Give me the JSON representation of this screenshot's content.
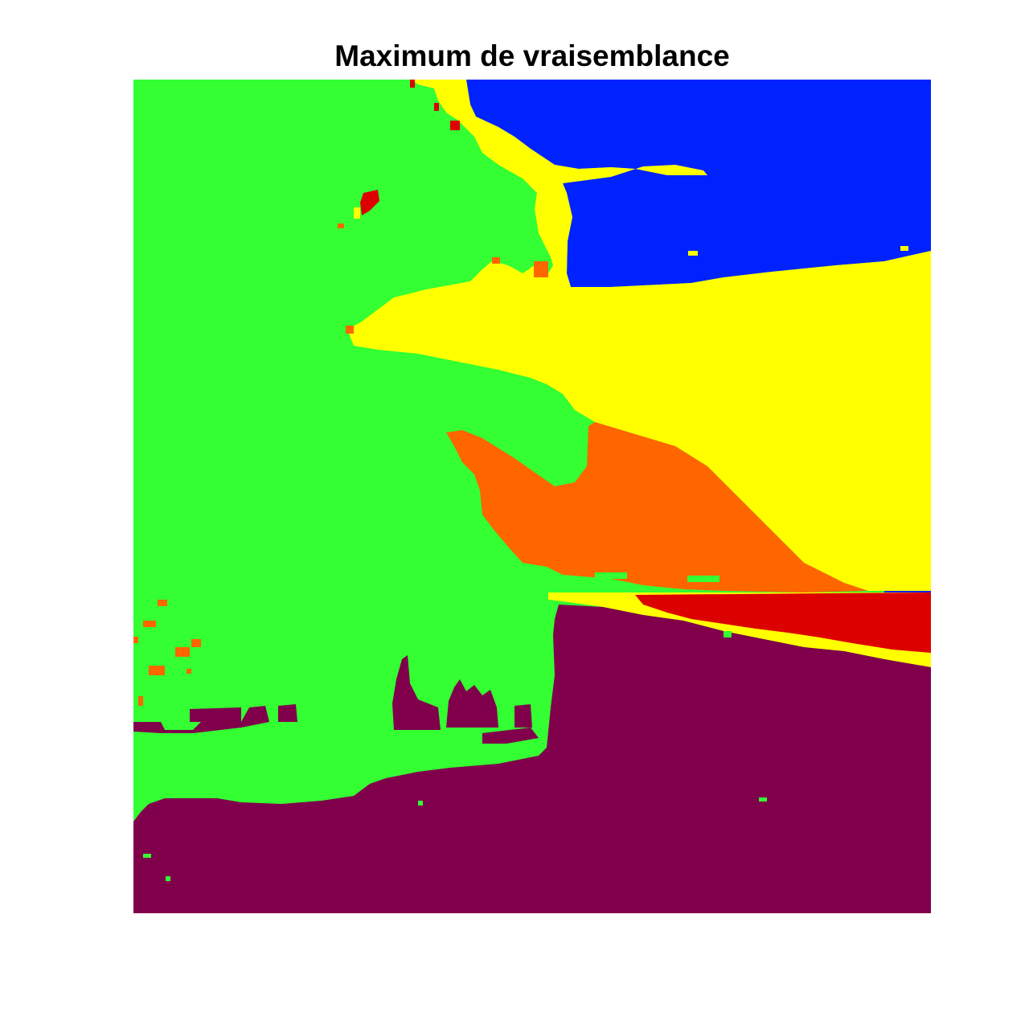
{
  "chart_data": {
    "type": "heatmap",
    "title": "Maximum de vraisemblance",
    "xlabel": "",
    "ylabel": "",
    "axes_visible": false,
    "grid": false,
    "legend": "none",
    "description_of_encoding": "Classification map: each region is a class index rendered with a categorical colour.",
    "classes": [
      {
        "id": 1,
        "color": "#0022ff"
      },
      {
        "id": 2,
        "color": "#ffff00"
      },
      {
        "id": 3,
        "color": "#33ff33"
      },
      {
        "id": 4,
        "color": "#ff6600"
      },
      {
        "id": 5,
        "color": "#dd0000"
      },
      {
        "id": 6,
        "color": "#80004c"
      }
    ],
    "grid_size": [
      100,
      100
    ],
    "regions": [
      {
        "class": 1,
        "name": "blue-region"
      },
      {
        "class": 2,
        "name": "yellow-region"
      },
      {
        "class": 3,
        "name": "green-region"
      },
      {
        "class": 4,
        "name": "orange-region"
      },
      {
        "class": 5,
        "name": "red-region"
      },
      {
        "class": 6,
        "name": "purple-region"
      }
    ]
  }
}
